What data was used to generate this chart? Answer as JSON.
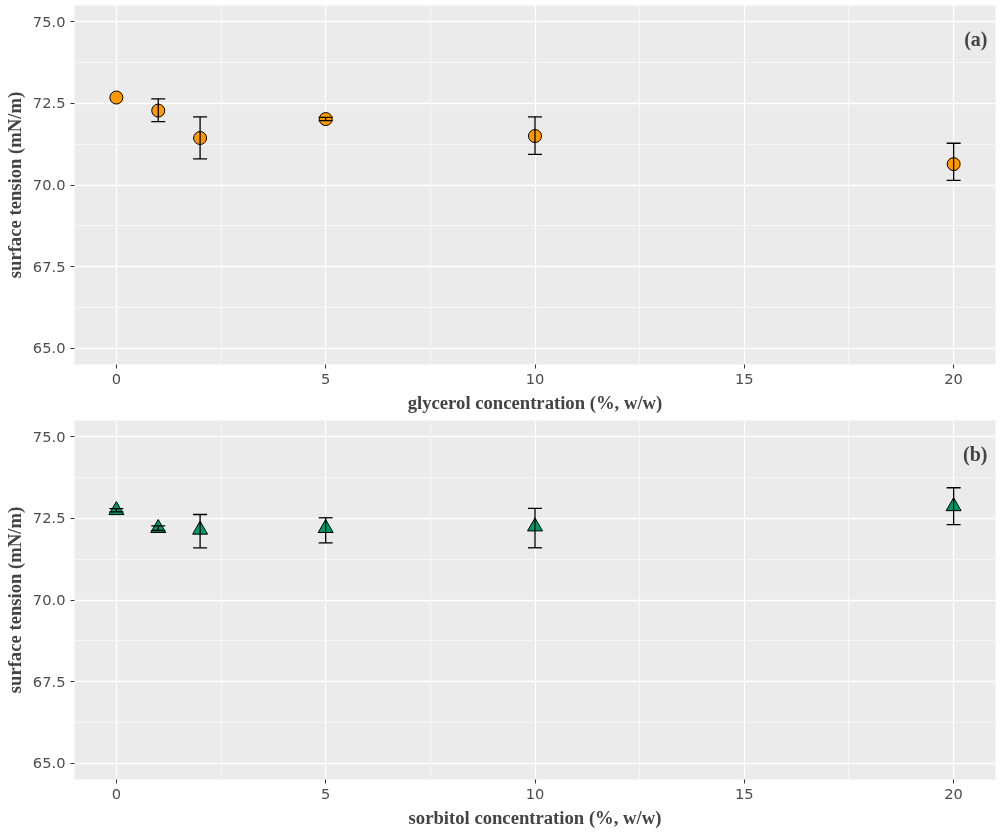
{
  "chart_data": [
    {
      "type": "scatter",
      "marker": "circle",
      "color": "#ff9900",
      "x": [
        0,
        1,
        2,
        5,
        10,
        20
      ],
      "values": [
        72.68,
        72.28,
        71.44,
        72.02,
        71.5,
        70.64
      ],
      "errors": [
        null,
        [
          71.94,
          72.64
        ],
        [
          70.8,
          72.09
        ],
        [
          71.97,
          72.07
        ],
        [
          70.94,
          72.09
        ],
        [
          70.14,
          71.28
        ]
      ],
      "xlabel": "glycerol concentration (%, w/w)",
      "ylabel": "surface tension (mN/m)",
      "xlim": [
        -1,
        21
      ],
      "ylim": [
        64.5,
        75.5
      ],
      "xticks": [
        0,
        5,
        10,
        15,
        20
      ],
      "yticks": [
        {
          "value": 65,
          "label": "65.0"
        },
        {
          "value": 67.5,
          "label": "67.5"
        },
        {
          "value": 70,
          "label": "70.0"
        },
        {
          "value": 72.5,
          "label": "72.5"
        },
        {
          "value": 75,
          "label": "75.0"
        }
      ],
      "grid": true,
      "annotations": [
        "(a)"
      ]
    },
    {
      "type": "scatter",
      "marker": "triangle",
      "color": "#009966",
      "x": [
        0,
        1,
        2,
        5,
        10,
        20
      ],
      "values": [
        72.75,
        72.2,
        72.15,
        72.2,
        72.25,
        72.87
      ],
      "errors": [
        [
          72.7,
          72.8
        ],
        [
          72.13,
          72.27
        ],
        [
          71.6,
          72.62
        ],
        [
          71.75,
          72.52
        ],
        [
          71.6,
          72.81
        ],
        [
          72.31,
          73.44
        ]
      ],
      "xlabel": "sorbitol concentration (%, w/w)",
      "ylabel": "surface tension (mN/m)",
      "xlim": [
        -1,
        21
      ],
      "ylim": [
        64.5,
        75.5
      ],
      "xticks": [
        0,
        5,
        10,
        15,
        20
      ],
      "yticks": [
        {
          "value": 65,
          "label": "65.0"
        },
        {
          "value": 67.5,
          "label": "67.5"
        },
        {
          "value": 70,
          "label": "70.0"
        },
        {
          "value": 72.5,
          "label": "72.5"
        },
        {
          "value": 75,
          "label": "75.0"
        }
      ],
      "grid": true,
      "annotations": [
        "(b)"
      ]
    }
  ]
}
